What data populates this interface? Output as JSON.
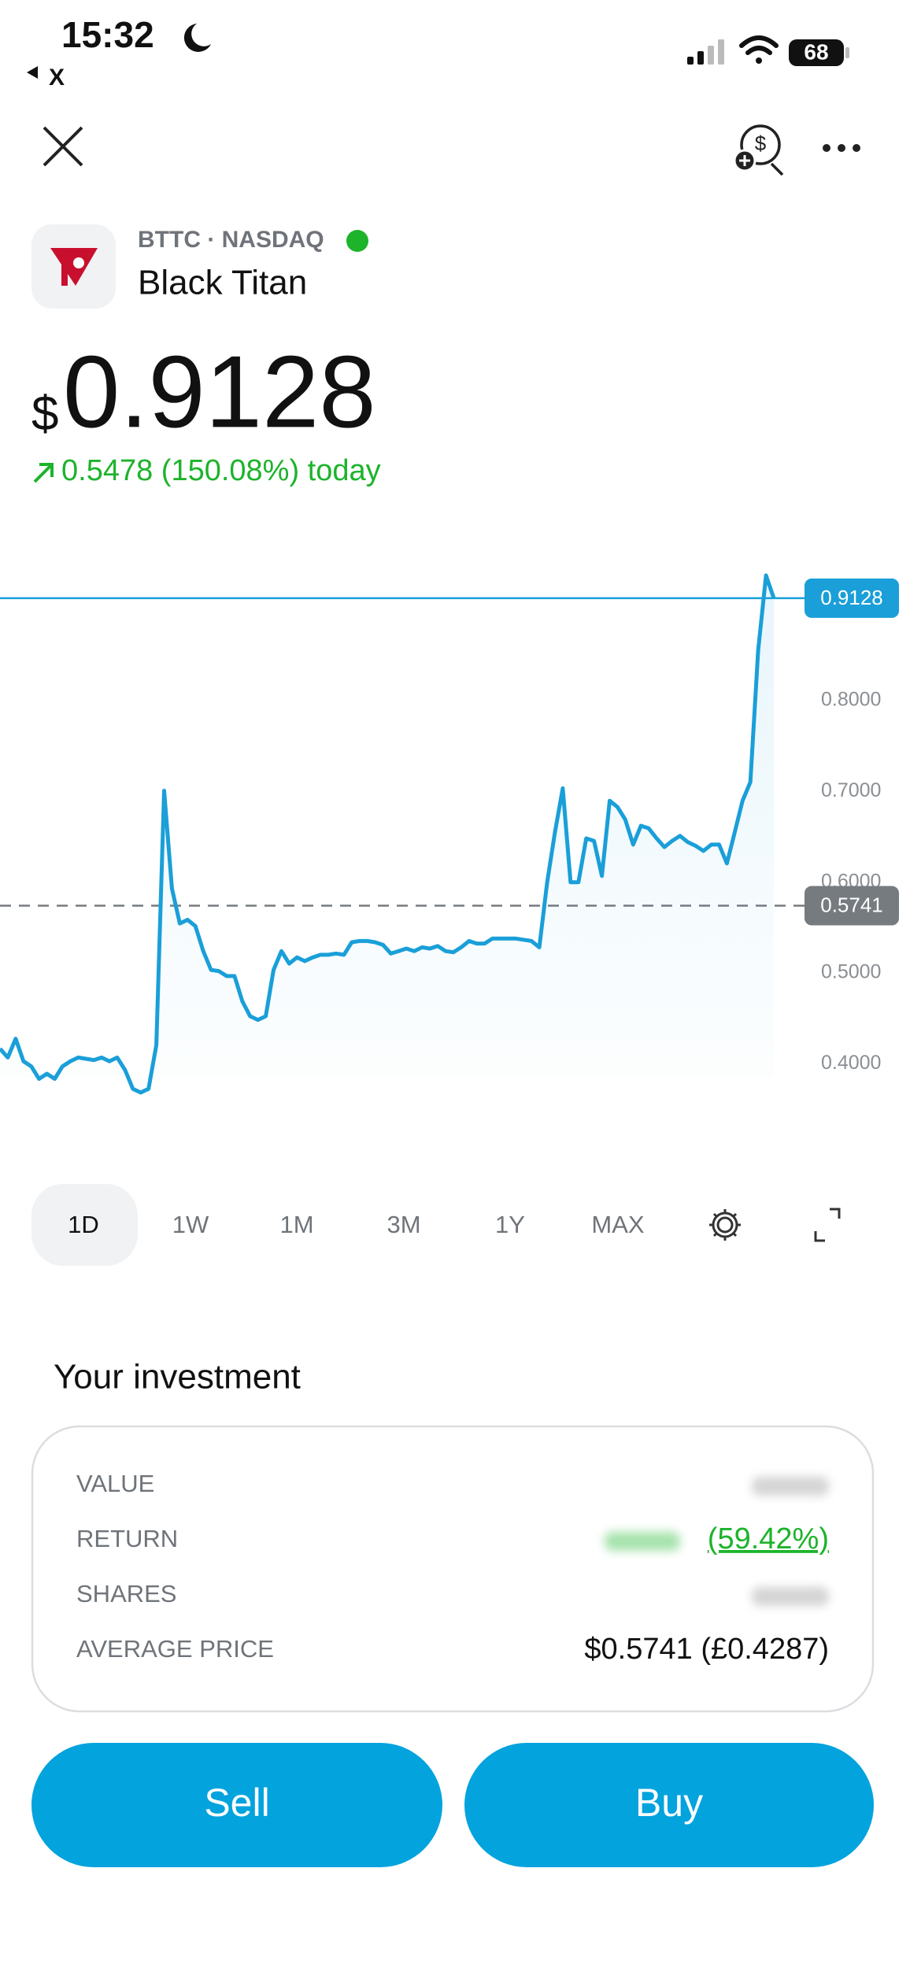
{
  "status": {
    "time": "15:32",
    "back": "X",
    "battery": "68"
  },
  "header": {
    "ticker": "BTTC · NASDAQ",
    "name": "Black Titan"
  },
  "price": {
    "currency": "$",
    "value": "0.9128",
    "change": "0.5478 (150.08%) today"
  },
  "chart_data": {
    "type": "line",
    "color": "#1a9fd8",
    "values": [
      0.4166,
      0.4069,
      0.4276,
      0.4028,
      0.3972,
      0.3834,
      0.389,
      0.3834,
      0.3972,
      0.4028,
      0.4069,
      0.4055,
      0.4041,
      0.4069,
      0.4028,
      0.4069,
      0.3931,
      0.3724,
      0.3683,
      0.3724,
      0.4207,
      0.7007,
      0.5931,
      0.5545,
      0.5586,
      0.5517,
      0.5241,
      0.5034,
      0.5021,
      0.4966,
      0.4966,
      0.469,
      0.4524,
      0.4483,
      0.4524,
      0.5034,
      0.5241,
      0.5103,
      0.5172,
      0.5131,
      0.5172,
      0.52,
      0.52,
      0.5214,
      0.52,
      0.5338,
      0.5352,
      0.5352,
      0.5338,
      0.531,
      0.5214,
      0.5241,
      0.5269,
      0.5241,
      0.5283,
      0.5269,
      0.5297,
      0.5241,
      0.5228,
      0.5283,
      0.5352,
      0.5324,
      0.5324,
      0.5379,
      0.5379,
      0.5379,
      0.5379,
      0.5366,
      0.5352,
      0.5283,
      0.6,
      0.6552,
      0.7034,
      0.6,
      0.6,
      0.6483,
      0.6455,
      0.6069,
      0.6897,
      0.6828,
      0.669,
      0.6414,
      0.6621,
      0.6593,
      0.6483,
      0.6386,
      0.6455,
      0.651,
      0.6441,
      0.64,
      0.6345,
      0.6414,
      0.6414,
      0.6207,
      0.6552,
      0.6897,
      0.7103,
      0.8552,
      0.9379,
      0.9128
    ],
    "ylim": [
      0.35,
      0.95
    ],
    "yticks": [
      {
        "value": 0.4,
        "label": "0.4000"
      },
      {
        "value": 0.5,
        "label": "0.5000"
      },
      {
        "value": 0.6,
        "label": "0.6000"
      },
      {
        "value": 0.7,
        "label": "0.7000"
      },
      {
        "value": 0.8,
        "label": "0.8000"
      }
    ],
    "grid": false,
    "reference_lines": [
      {
        "value": 0.9128,
        "label": "0.9128",
        "color": "#1a9fd8",
        "style": "solid"
      },
      {
        "value": 0.5741,
        "label": "0.5741",
        "color": "#767b80",
        "style": "dashed"
      }
    ]
  },
  "ranges": [
    "1D",
    "1W",
    "1M",
    "3M",
    "1Y",
    "MAX"
  ],
  "investment": {
    "title": "Your investment",
    "rows": [
      {
        "label": "VALUE"
      },
      {
        "label": "RETURN",
        "value": "(59.42%)"
      },
      {
        "label": "SHARES"
      },
      {
        "label": "AVERAGE PRICE",
        "value": "$0.5741 (£0.4287)"
      }
    ]
  },
  "buttons": {
    "sell": "Sell",
    "buy": "Buy"
  }
}
